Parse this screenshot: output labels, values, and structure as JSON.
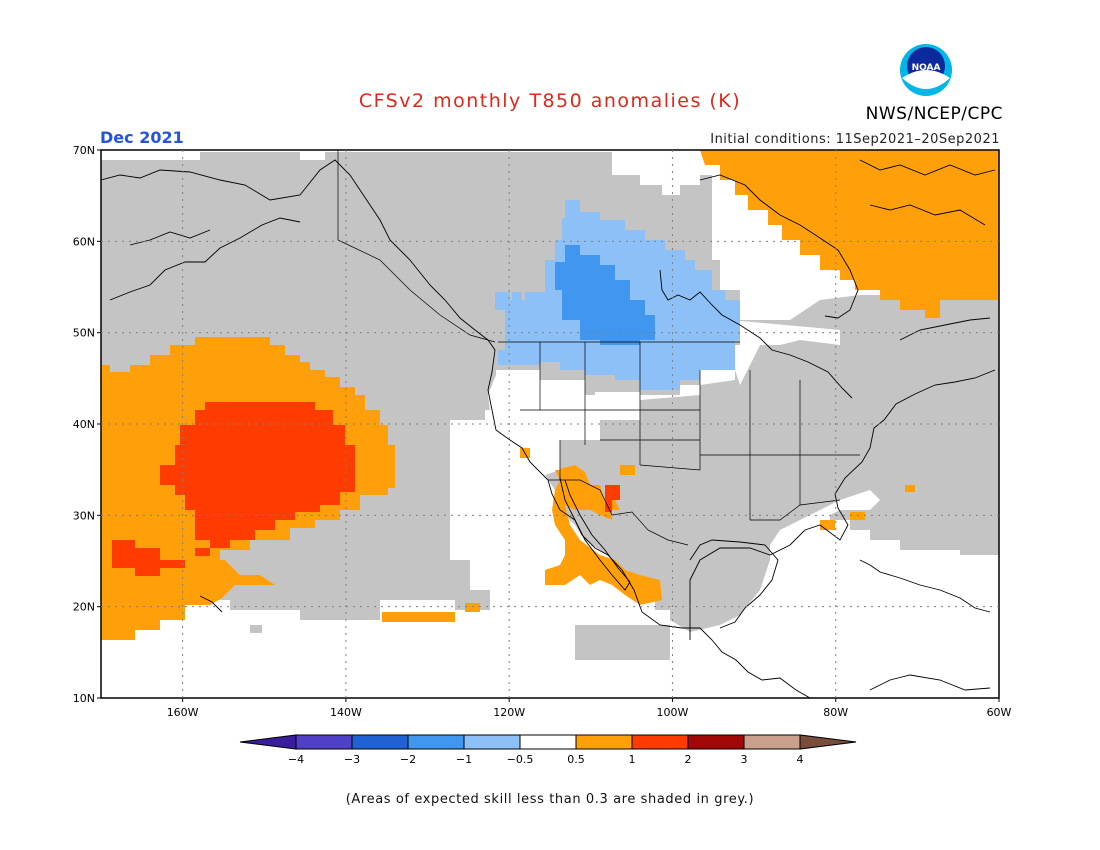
{
  "header": {
    "title": "CFSv2 monthly T850 anomalies (K)",
    "month": "Dec 2021",
    "initial_conditions": "Initial conditions: 11Sep2021–20Sep2021",
    "organization": "NWS/NCEP/CPC",
    "logo_text": "NOAA"
  },
  "map": {
    "lat_labels": [
      "70N",
      "60N",
      "50N",
      "40N",
      "30N",
      "20N",
      "10N"
    ],
    "lon_labels": [
      "160W",
      "140W",
      "120W",
      "100W",
      "80W",
      "60W"
    ],
    "colors": {
      "grey": "#c4c4c4",
      "orange": "#ffa00a",
      "red_orange": "#ff3c00",
      "light_blue": "#8cc0f6",
      "blue": "#4196f0",
      "white": "#ffffff"
    }
  },
  "colorbar": {
    "tick_labels": [
      "−4",
      "−3",
      "−2",
      "−1",
      "−0.5",
      "0.5",
      "1",
      "2",
      "3",
      "4"
    ],
    "colors": [
      "#3a1d9c",
      "#5040c8",
      "#1f62d3",
      "#4196f0",
      "#8cc0f6",
      "#ffffff",
      "#ffa00a",
      "#ff3c00",
      "#a10808",
      "#c8a08c",
      "#7a4c3c"
    ]
  },
  "footnote": "(Areas of expected skill less than 0.3 are shaded in grey.)"
}
